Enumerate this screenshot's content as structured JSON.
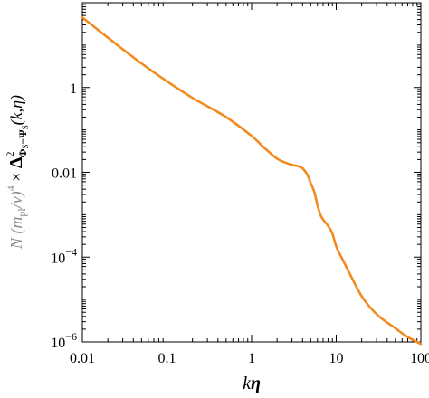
{
  "chart_data": {
    "type": "line",
    "title": "",
    "xlabel": {
      "pre": "k",
      "sym": "η"
    },
    "ylabel": {
      "prefix": "N (m",
      "prefix_sub": "pl",
      "prefix_mid": "/ν)",
      "prefix_sup": "4",
      "times": " × ",
      "delta": "Δ",
      "delta_sup": "2",
      "delta_sub": "Φ",
      "delta_sub2": "S",
      "delta_sub3": "−Ψ",
      "delta_sub4": "S",
      "args": "(k,η)"
    },
    "x_scale": "log",
    "y_scale": "log",
    "xlim": [
      0.01,
      100
    ],
    "ylim": [
      1e-06,
      100
    ],
    "x_ticks": [
      {
        "value": 0.01,
        "label": "0.01"
      },
      {
        "value": 0.1,
        "label": "0.1"
      },
      {
        "value": 1,
        "label": "1"
      },
      {
        "value": 10,
        "label": "10"
      },
      {
        "value": 100,
        "label": "100"
      }
    ],
    "y_ticks": [
      {
        "value": 1,
        "label": "1",
        "mantissa": "1",
        "exp": ""
      },
      {
        "value": 0.01,
        "label": "0.01",
        "mantissa": "0.01",
        "exp": ""
      },
      {
        "value": 0.0001,
        "label": "10-4",
        "mantissa": "10",
        "exp": "−4"
      },
      {
        "value": 1e-06,
        "label": "10-6",
        "mantissa": "10",
        "exp": "−6"
      }
    ],
    "grid": false,
    "series": [
      {
        "color": "#f28a1f",
        "x": [
          0.01,
          0.02,
          0.05,
          0.1,
          0.2,
          0.5,
          1,
          1.5,
          2,
          2.5,
          3,
          3.5,
          4,
          4.3,
          4.6,
          5,
          5.5,
          6,
          6.5,
          7,
          8,
          9,
          10,
          12,
          15,
          20,
          30,
          50,
          70,
          100
        ],
        "y": [
          45,
          15,
          3.7,
          1.4,
          0.57,
          0.2,
          0.072,
          0.034,
          0.021,
          0.017,
          0.015,
          0.014,
          0.0125,
          0.0105,
          0.0085,
          0.0055,
          0.0035,
          0.0017,
          0.001,
          0.00077,
          0.00055,
          0.00036,
          0.00018,
          8.5e-05,
          3.5e-05,
          1.2e-05,
          4.5e-06,
          2.1e-06,
          1.3e-06,
          9e-07
        ]
      }
    ]
  }
}
